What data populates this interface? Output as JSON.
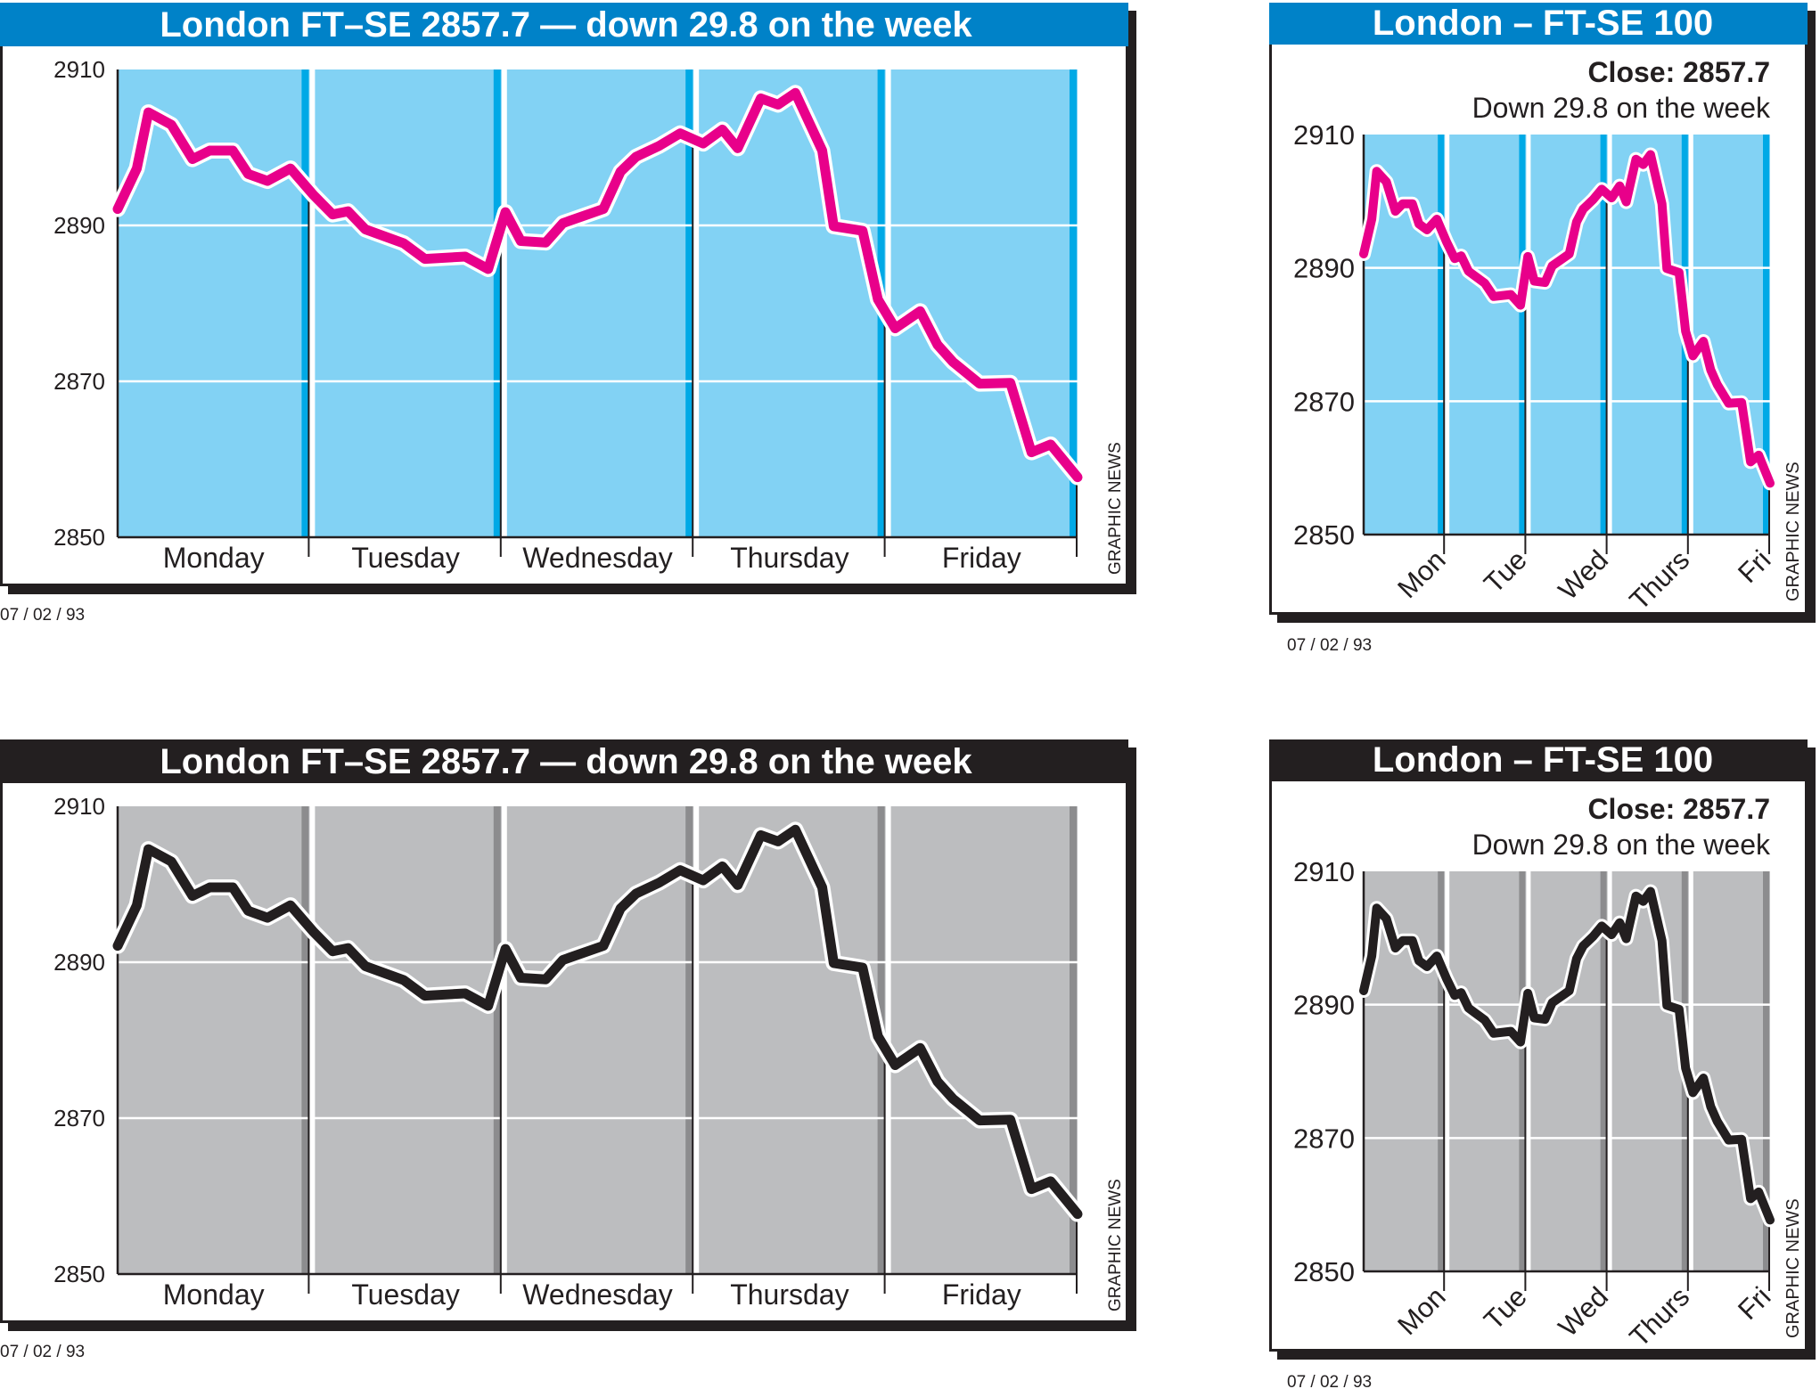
{
  "colors": {
    "blue_title": "#0082c8",
    "blue_plot": "#82d2f4",
    "blue_stripe": "#00a9e6",
    "magenta_line": "#e8008a",
    "gray_title": "#231f20",
    "gray_plot": "#bcbdbf",
    "gray_stripe": "#8c8c8e",
    "black_line": "#231f20"
  },
  "chart_data": [
    {
      "type": "line",
      "variant": "wide-color",
      "title": "London FT–SE 2857.7 — down 29.8 on the week",
      "yticks": [
        "2850",
        "2870",
        "2890",
        "2910"
      ],
      "ylim": [
        2850,
        2910
      ],
      "categories": [
        "Monday",
        "Tuesday",
        "Wednesday",
        "Thursday",
        "Friday"
      ],
      "credit": "GRAPHIC NEWS",
      "date": "07 / 02 / 93"
    },
    {
      "type": "line",
      "variant": "compact-color",
      "title": "London – FT-SE 100",
      "subtitle_bold": "Close: 2857.7",
      "subtitle": "Down 29.8 on the week",
      "yticks": [
        "2850",
        "2870",
        "2890",
        "2910"
      ],
      "ylim": [
        2850,
        2910
      ],
      "categories": [
        "Mon",
        "Tue",
        "Wed",
        "Thurs",
        "Fri"
      ],
      "credit": "GRAPHIC NEWS",
      "date": "07 / 02 / 93"
    },
    {
      "type": "line",
      "variant": "wide-mono",
      "title": "London FT–SE 2857.7 — down 29.8 on the week",
      "yticks": [
        "2850",
        "2870",
        "2890",
        "2910"
      ],
      "ylim": [
        2850,
        2910
      ],
      "categories": [
        "Monday",
        "Tuesday",
        "Wednesday",
        "Thursday",
        "Friday"
      ],
      "credit": "GRAPHIC NEWS",
      "date": "07 / 02 / 93"
    },
    {
      "type": "line",
      "variant": "compact-mono",
      "title": "London – FT-SE 100",
      "subtitle_bold": "Close: 2857.7",
      "subtitle": "Down 29.8 on the week",
      "yticks": [
        "2850",
        "2870",
        "2890",
        "2910"
      ],
      "ylim": [
        2850,
        2910
      ],
      "categories": [
        "Mon",
        "Tue",
        "Wed",
        "Thurs",
        "Fri"
      ],
      "credit": "GRAPHIC NEWS",
      "date": "07 / 02 / 93"
    }
  ],
  "series": {
    "name": "FT-SE 100",
    "x_days": [
      0,
      0.1,
      0.16,
      0.28,
      0.39,
      0.48,
      0.6,
      0.68,
      0.78,
      0.9,
      1.02,
      1.12,
      1.2,
      1.29,
      1.49,
      1.6,
      1.81,
      1.93,
      2.02,
      2.1,
      2.23,
      2.32,
      2.53,
      2.62,
      2.7,
      2.82,
      2.93,
      3.05,
      3.15,
      3.23,
      3.35,
      3.44,
      3.53,
      3.67,
      3.73,
      3.88,
      3.96,
      4.05,
      4.18,
      4.27,
      4.35,
      4.49,
      4.65,
      4.76,
      4.86,
      5.0
    ],
    "values": [
      2892.1,
      2897.3,
      2904.5,
      2902.9,
      2898.5,
      2899.6,
      2899.6,
      2896.6,
      2895.7,
      2897.3,
      2893.9,
      2891.4,
      2891.8,
      2889.5,
      2887.7,
      2885.7,
      2886.0,
      2884.4,
      2891.7,
      2888.0,
      2887.8,
      2890.3,
      2892.1,
      2896.9,
      2898.8,
      2900.2,
      2901.8,
      2900.5,
      2902.3,
      2899.9,
      2906.3,
      2905.5,
      2907.0,
      2899.6,
      2889.9,
      2889.3,
      2880.5,
      2876.8,
      2879.0,
      2874.7,
      2872.5,
      2869.7,
      2869.8,
      2860.9,
      2861.9,
      2857.7
    ]
  }
}
